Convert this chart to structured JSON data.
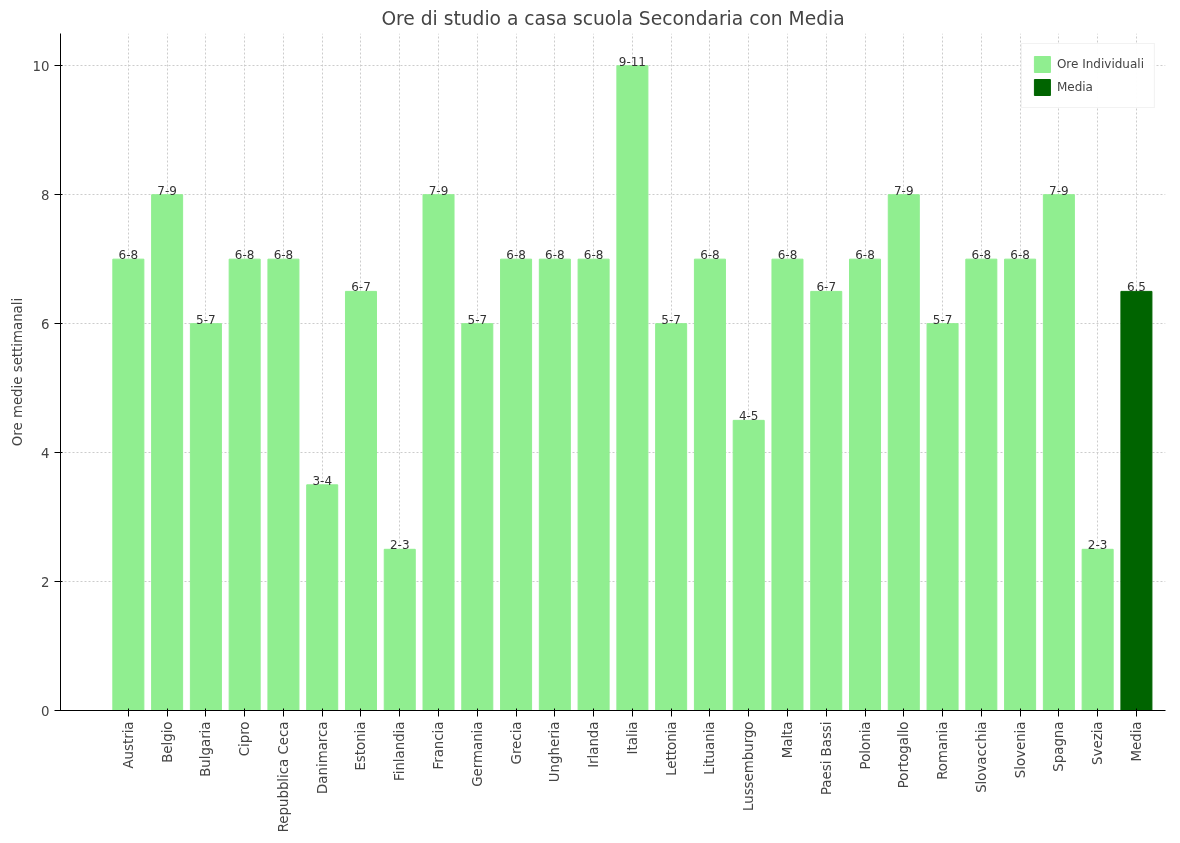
{
  "chart_data": {
    "type": "bar",
    "title": "Ore di studio a casa scuola Secondaria con Media",
    "ylabel": "Ore medie settimanali",
    "categories": [
      "Austria",
      "Belgio",
      "Bulgaria",
      "Cipro",
      "Repubblica Ceca",
      "Danimarca",
      "Estonia",
      "Finlandia",
      "Francia",
      "Germania",
      "Grecia",
      "Ungheria",
      "Irlanda",
      "Italia",
      "Lettonia",
      "Lituania",
      "Lussemburgo",
      "Malta",
      "Paesi Bassi",
      "Polonia",
      "Portogallo",
      "Romania",
      "Slovacchia",
      "Slovenia",
      "Spagna",
      "Svezia",
      "Media"
    ],
    "series": [
      {
        "name": "Ore Individuali",
        "color": "#90ee90",
        "values": [
          7,
          8,
          6,
          7,
          7,
          3.5,
          6.5,
          2.5,
          8,
          6,
          7,
          7,
          7,
          10,
          6,
          7,
          4.5,
          7,
          6.5,
          7,
          8,
          6,
          7,
          7,
          8,
          2.5,
          null
        ],
        "value_labels": [
          "6-8",
          "7-9",
          "5-7",
          "6-8",
          "6-8",
          "3-4",
          "6-7",
          "2-3",
          "7-9",
          "5-7",
          "6-8",
          "6-8",
          "6-8",
          "9-11",
          "5-7",
          "6-8",
          "4-5",
          "6-8",
          "6-7",
          "6-8",
          "7-9",
          "5-7",
          "6-8",
          "6-8",
          "7-9",
          "2-3",
          null
        ]
      },
      {
        "name": "Media",
        "color": "#006400",
        "values": [
          null,
          null,
          null,
          null,
          null,
          null,
          null,
          null,
          null,
          null,
          null,
          null,
          null,
          null,
          null,
          null,
          null,
          null,
          null,
          null,
          null,
          null,
          null,
          null,
          null,
          null,
          6.5
        ],
        "value_labels": [
          null,
          null,
          null,
          null,
          null,
          null,
          null,
          null,
          null,
          null,
          null,
          null,
          null,
          null,
          null,
          null,
          null,
          null,
          null,
          null,
          null,
          null,
          null,
          null,
          null,
          null,
          "6.5"
        ]
      }
    ],
    "ylim": [
      0,
      10.5
    ],
    "yticks": [
      0,
      2,
      4,
      6,
      8,
      10
    ],
    "grid": true,
    "legend": "top right"
  }
}
